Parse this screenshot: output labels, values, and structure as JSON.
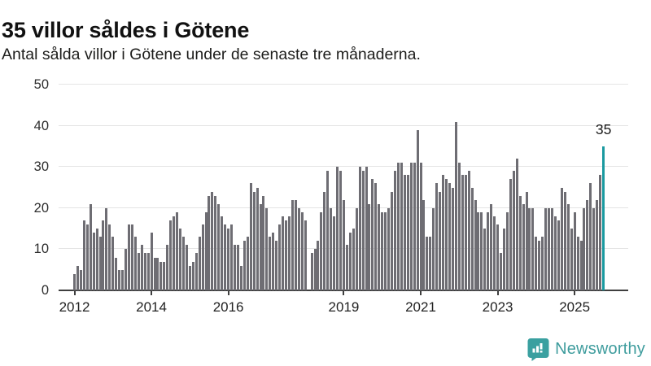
{
  "header": {
    "title": "35 villor såldes i Götene",
    "subtitle": "Antal sålda villor i Götene under de senaste tre månaderna."
  },
  "chart_data": {
    "type": "bar",
    "title": "35 villor såldes i Götene",
    "subtitle": "Antal sålda villor i Götene under de senaste tre månaderna.",
    "ylim": [
      0,
      50
    ],
    "y_ticks": [
      0,
      10,
      20,
      30,
      40,
      50
    ],
    "grid": "horizontal",
    "x_tick_labels": [
      "2012",
      "2014",
      "2016",
      "2019",
      "2021",
      "2023",
      "2025"
    ],
    "x_tick_indices": [
      0,
      24,
      48,
      84,
      108,
      132,
      156
    ],
    "x_unit": "month",
    "values": [
      4,
      6,
      5,
      17,
      16,
      21,
      14,
      15,
      13,
      17,
      20,
      16,
      13,
      8,
      5,
      5,
      10,
      16,
      16,
      13,
      9,
      11,
      9,
      9,
      14,
      8,
      8,
      7,
      7,
      11,
      17,
      18,
      19,
      15,
      13,
      11,
      6,
      7,
      9,
      13,
      16,
      19,
      23,
      24,
      23,
      21,
      18,
      16,
      15,
      16,
      11,
      11,
      6,
      12,
      13,
      26,
      24,
      25,
      21,
      23,
      20,
      13,
      14,
      12,
      16,
      18,
      17,
      18,
      22,
      22,
      20,
      19,
      17,
      0,
      9,
      10,
      12,
      19,
      24,
      29,
      20,
      18,
      30,
      29,
      22,
      11,
      14,
      15,
      20,
      30,
      29,
      30,
      21,
      27,
      26,
      21,
      19,
      19,
      20,
      24,
      29,
      31,
      31,
      28,
      28,
      31,
      31,
      39,
      31,
      22,
      13,
      13,
      20,
      26,
      24,
      28,
      27,
      26,
      25,
      41,
      31,
      28,
      28,
      29,
      25,
      22,
      19,
      19,
      15,
      19,
      21,
      18,
      16,
      9,
      15,
      19,
      27,
      29,
      32,
      23,
      21,
      24,
      20,
      20,
      13,
      12,
      13,
      20,
      20,
      20,
      18,
      17,
      25,
      24,
      21,
      15,
      19,
      13,
      12,
      20,
      22,
      26,
      20,
      22,
      28,
      35
    ],
    "highlighted_bar": {
      "index_from_end": 1,
      "value": 35,
      "label": "35"
    },
    "annotation": "35",
    "bar_color": "#6e6d73",
    "highlight_color": "#1b9aa0",
    "axis_color": "#3f3f3f",
    "grid_color": "#e4e4e4"
  },
  "footer": {
    "brand": "Newsworthy",
    "brand_color": "#3e9c9d",
    "logo_icon": "bar-chart-speech-bubble-icon"
  }
}
